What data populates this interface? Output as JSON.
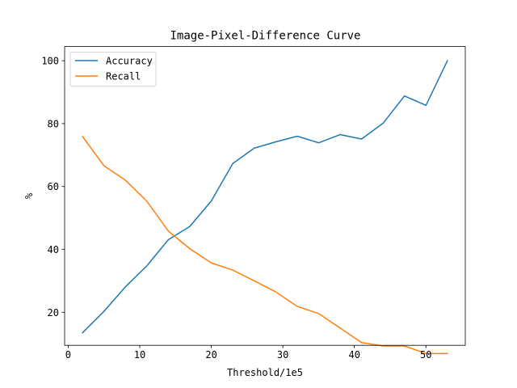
{
  "chart_data": {
    "type": "line",
    "title": "Image-Pixel-Difference Curve",
    "xlabel": "Threshold/1e5",
    "ylabel": "%",
    "xlim": [
      -0.5,
      55.5
    ],
    "ylim": [
      9.5,
      104.5
    ],
    "xticks": [
      0,
      10,
      20,
      30,
      40,
      50
    ],
    "yticks": [
      20,
      40,
      60,
      80,
      100
    ],
    "grid": false,
    "legend_position": "upper-left",
    "x": [
      2,
      5,
      8,
      11,
      14,
      17,
      20,
      23,
      26,
      29,
      32,
      35,
      38,
      41,
      44,
      47,
      50,
      53
    ],
    "series": [
      {
        "name": "Accuracy",
        "color": "#1f77b4",
        "values": [
          13.5,
          20.3,
          28.1,
          34.8,
          43.1,
          47.3,
          55.4,
          67.3,
          72.2,
          74.2,
          76.0,
          73.9,
          76.5,
          75.1,
          80.1,
          88.8,
          85.8,
          100.0
        ]
      },
      {
        "name": "Recall",
        "color": "#ff7f0e",
        "values": [
          75.9,
          66.6,
          62.0,
          55.3,
          45.8,
          40.2,
          35.7,
          33.4,
          30.0,
          26.5,
          21.9,
          19.6,
          15.0,
          10.4,
          9.3,
          9.3,
          6.9,
          6.9
        ]
      }
    ]
  }
}
